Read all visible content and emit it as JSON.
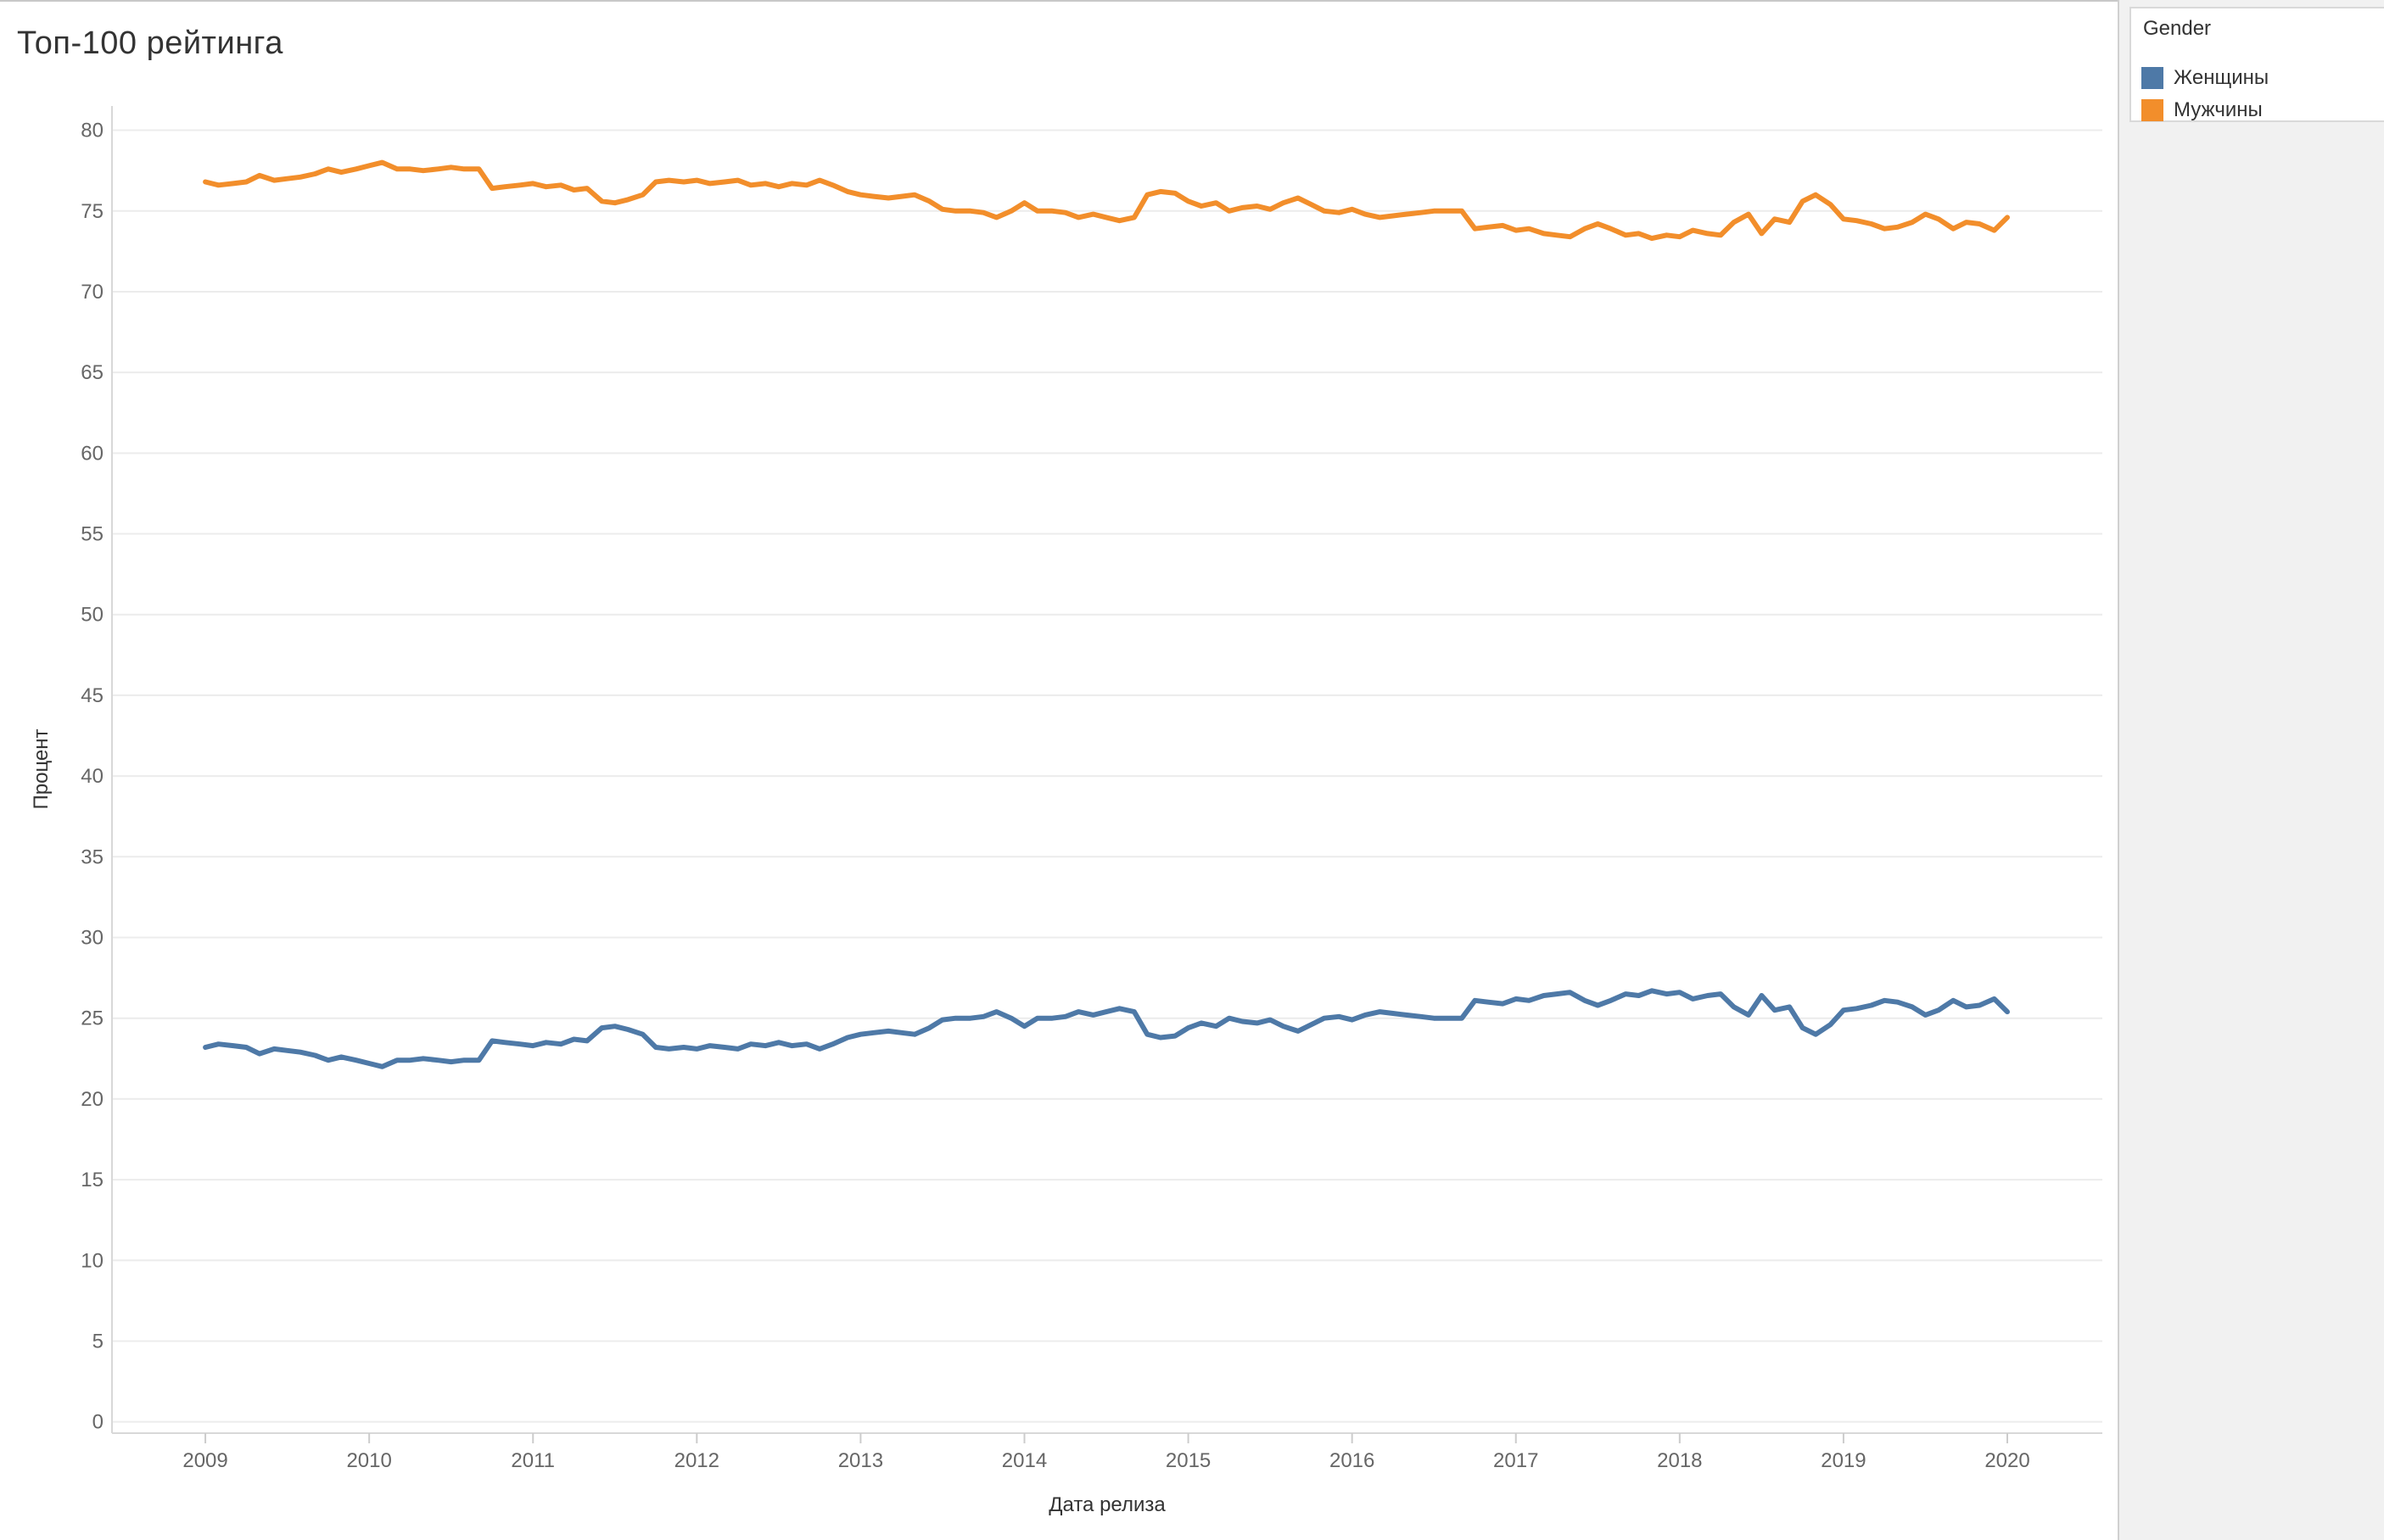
{
  "colors": {
    "women": "#4e79a7",
    "men": "#f28e2b",
    "grid": "#ececec"
  },
  "legend": {
    "title": "Gender",
    "items": [
      {
        "label": "Женщины",
        "color": "#4e79a7"
      },
      {
        "label": "Мужчины",
        "color": "#f28e2b"
      }
    ]
  },
  "chart_data": {
    "type": "line",
    "title": "Топ-100 рейтинга",
    "xlabel": "Дата релиза",
    "ylabel": "Процент",
    "xlim": [
      2008.43,
      2020.58
    ],
    "ylim": [
      -0.7,
      81.5
    ],
    "x_ticks": [
      2009,
      2010,
      2011,
      2012,
      2013,
      2014,
      2015,
      2016,
      2017,
      2018,
      2019,
      2020
    ],
    "y_ticks": [
      0,
      5,
      10,
      15,
      20,
      25,
      30,
      35,
      40,
      45,
      50,
      55,
      60,
      65,
      70,
      75,
      80
    ],
    "grid": true,
    "legend_position": "right",
    "series": [
      {
        "name": "Мужчины",
        "points": [
          [
            2009.0,
            76.8
          ],
          [
            2009.08,
            76.6
          ],
          [
            2009.17,
            76.7
          ],
          [
            2009.25,
            76.8
          ],
          [
            2009.33,
            77.2
          ],
          [
            2009.42,
            76.9
          ],
          [
            2009.5,
            77.0
          ],
          [
            2009.58,
            77.1
          ],
          [
            2009.67,
            77.3
          ],
          [
            2009.75,
            77.6
          ],
          [
            2009.83,
            77.4
          ],
          [
            2009.92,
            77.6
          ],
          [
            2010.0,
            77.8
          ],
          [
            2010.08,
            78.0
          ],
          [
            2010.17,
            77.6
          ],
          [
            2010.25,
            77.6
          ],
          [
            2010.33,
            77.5
          ],
          [
            2010.42,
            77.6
          ],
          [
            2010.5,
            77.7
          ],
          [
            2010.58,
            77.6
          ],
          [
            2010.67,
            77.6
          ],
          [
            2010.75,
            76.4
          ],
          [
            2010.83,
            76.5
          ],
          [
            2010.92,
            76.6
          ],
          [
            2011.0,
            76.7
          ],
          [
            2011.08,
            76.5
          ],
          [
            2011.17,
            76.6
          ],
          [
            2011.25,
            76.3
          ],
          [
            2011.33,
            76.4
          ],
          [
            2011.42,
            75.6
          ],
          [
            2011.5,
            75.5
          ],
          [
            2011.58,
            75.7
          ],
          [
            2011.67,
            76.0
          ],
          [
            2011.75,
            76.8
          ],
          [
            2011.83,
            76.9
          ],
          [
            2011.92,
            76.8
          ],
          [
            2012.0,
            76.9
          ],
          [
            2012.08,
            76.7
          ],
          [
            2012.17,
            76.8
          ],
          [
            2012.25,
            76.9
          ],
          [
            2012.33,
            76.6
          ],
          [
            2012.42,
            76.7
          ],
          [
            2012.5,
            76.5
          ],
          [
            2012.58,
            76.7
          ],
          [
            2012.67,
            76.6
          ],
          [
            2012.75,
            76.9
          ],
          [
            2012.83,
            76.6
          ],
          [
            2012.92,
            76.2
          ],
          [
            2013.0,
            76.0
          ],
          [
            2013.08,
            75.9
          ],
          [
            2013.17,
            75.8
          ],
          [
            2013.25,
            75.9
          ],
          [
            2013.33,
            76.0
          ],
          [
            2013.42,
            75.6
          ],
          [
            2013.5,
            75.1
          ],
          [
            2013.58,
            75.0
          ],
          [
            2013.67,
            75.0
          ],
          [
            2013.75,
            74.9
          ],
          [
            2013.83,
            74.6
          ],
          [
            2013.92,
            75.0
          ],
          [
            2014.0,
            75.5
          ],
          [
            2014.08,
            75.0
          ],
          [
            2014.17,
            75.0
          ],
          [
            2014.25,
            74.9
          ],
          [
            2014.33,
            74.6
          ],
          [
            2014.42,
            74.8
          ],
          [
            2014.5,
            74.6
          ],
          [
            2014.58,
            74.4
          ],
          [
            2014.67,
            74.6
          ],
          [
            2014.75,
            76.0
          ],
          [
            2014.83,
            76.2
          ],
          [
            2014.92,
            76.1
          ],
          [
            2015.0,
            75.6
          ],
          [
            2015.08,
            75.3
          ],
          [
            2015.17,
            75.5
          ],
          [
            2015.25,
            75.0
          ],
          [
            2015.33,
            75.2
          ],
          [
            2015.42,
            75.3
          ],
          [
            2015.5,
            75.1
          ],
          [
            2015.58,
            75.5
          ],
          [
            2015.67,
            75.8
          ],
          [
            2015.75,
            75.4
          ],
          [
            2015.83,
            75.0
          ],
          [
            2015.92,
            74.9
          ],
          [
            2016.0,
            75.1
          ],
          [
            2016.08,
            74.8
          ],
          [
            2016.17,
            74.6
          ],
          [
            2016.25,
            74.7
          ],
          [
            2016.33,
            74.8
          ],
          [
            2016.42,
            74.9
          ],
          [
            2016.5,
            75.0
          ],
          [
            2016.58,
            75.0
          ],
          [
            2016.67,
            75.0
          ],
          [
            2016.75,
            73.9
          ],
          [
            2016.83,
            74.0
          ],
          [
            2016.92,
            74.1
          ],
          [
            2017.0,
            73.8
          ],
          [
            2017.08,
            73.9
          ],
          [
            2017.17,
            73.6
          ],
          [
            2017.25,
            73.5
          ],
          [
            2017.33,
            73.4
          ],
          [
            2017.42,
            73.9
          ],
          [
            2017.5,
            74.2
          ],
          [
            2017.58,
            73.9
          ],
          [
            2017.67,
            73.5
          ],
          [
            2017.75,
            73.6
          ],
          [
            2017.83,
            73.3
          ],
          [
            2017.92,
            73.5
          ],
          [
            2018.0,
            73.4
          ],
          [
            2018.08,
            73.8
          ],
          [
            2018.17,
            73.6
          ],
          [
            2018.25,
            73.5
          ],
          [
            2018.33,
            74.3
          ],
          [
            2018.42,
            74.8
          ],
          [
            2018.5,
            73.6
          ],
          [
            2018.58,
            74.5
          ],
          [
            2018.67,
            74.3
          ],
          [
            2018.75,
            75.6
          ],
          [
            2018.83,
            76.0
          ],
          [
            2018.92,
            75.4
          ],
          [
            2019.0,
            74.5
          ],
          [
            2019.08,
            74.4
          ],
          [
            2019.17,
            74.2
          ],
          [
            2019.25,
            73.9
          ],
          [
            2019.33,
            74.0
          ],
          [
            2019.42,
            74.3
          ],
          [
            2019.5,
            74.8
          ],
          [
            2019.58,
            74.5
          ],
          [
            2019.67,
            73.9
          ],
          [
            2019.75,
            74.3
          ],
          [
            2019.83,
            74.2
          ],
          [
            2019.92,
            73.8
          ],
          [
            2020.0,
            74.6
          ]
        ]
      },
      {
        "name": "Женщины",
        "points": [
          [
            2009.0,
            23.2
          ],
          [
            2009.08,
            23.4
          ],
          [
            2009.17,
            23.3
          ],
          [
            2009.25,
            23.2
          ],
          [
            2009.33,
            22.8
          ],
          [
            2009.42,
            23.1
          ],
          [
            2009.5,
            23.0
          ],
          [
            2009.58,
            22.9
          ],
          [
            2009.67,
            22.7
          ],
          [
            2009.75,
            22.4
          ],
          [
            2009.83,
            22.6
          ],
          [
            2009.92,
            22.4
          ],
          [
            2010.0,
            22.2
          ],
          [
            2010.08,
            22.0
          ],
          [
            2010.17,
            22.4
          ],
          [
            2010.25,
            22.4
          ],
          [
            2010.33,
            22.5
          ],
          [
            2010.42,
            22.4
          ],
          [
            2010.5,
            22.3
          ],
          [
            2010.58,
            22.4
          ],
          [
            2010.67,
            22.4
          ],
          [
            2010.75,
            23.6
          ],
          [
            2010.83,
            23.5
          ],
          [
            2010.92,
            23.4
          ],
          [
            2011.0,
            23.3
          ],
          [
            2011.08,
            23.5
          ],
          [
            2011.17,
            23.4
          ],
          [
            2011.25,
            23.7
          ],
          [
            2011.33,
            23.6
          ],
          [
            2011.42,
            24.4
          ],
          [
            2011.5,
            24.5
          ],
          [
            2011.58,
            24.3
          ],
          [
            2011.67,
            24.0
          ],
          [
            2011.75,
            23.2
          ],
          [
            2011.83,
            23.1
          ],
          [
            2011.92,
            23.2
          ],
          [
            2012.0,
            23.1
          ],
          [
            2012.08,
            23.3
          ],
          [
            2012.17,
            23.2
          ],
          [
            2012.25,
            23.1
          ],
          [
            2012.33,
            23.4
          ],
          [
            2012.42,
            23.3
          ],
          [
            2012.5,
            23.5
          ],
          [
            2012.58,
            23.3
          ],
          [
            2012.67,
            23.4
          ],
          [
            2012.75,
            23.1
          ],
          [
            2012.83,
            23.4
          ],
          [
            2012.92,
            23.8
          ],
          [
            2013.0,
            24.0
          ],
          [
            2013.08,
            24.1
          ],
          [
            2013.17,
            24.2
          ],
          [
            2013.25,
            24.1
          ],
          [
            2013.33,
            24.0
          ],
          [
            2013.42,
            24.4
          ],
          [
            2013.5,
            24.9
          ],
          [
            2013.58,
            25.0
          ],
          [
            2013.67,
            25.0
          ],
          [
            2013.75,
            25.1
          ],
          [
            2013.83,
            25.4
          ],
          [
            2013.92,
            25.0
          ],
          [
            2014.0,
            24.5
          ],
          [
            2014.08,
            25.0
          ],
          [
            2014.17,
            25.0
          ],
          [
            2014.25,
            25.1
          ],
          [
            2014.33,
            25.4
          ],
          [
            2014.42,
            25.2
          ],
          [
            2014.5,
            25.4
          ],
          [
            2014.58,
            25.6
          ],
          [
            2014.67,
            25.4
          ],
          [
            2014.75,
            24.0
          ],
          [
            2014.83,
            23.8
          ],
          [
            2014.92,
            23.9
          ],
          [
            2015.0,
            24.4
          ],
          [
            2015.08,
            24.7
          ],
          [
            2015.17,
            24.5
          ],
          [
            2015.25,
            25.0
          ],
          [
            2015.33,
            24.8
          ],
          [
            2015.42,
            24.7
          ],
          [
            2015.5,
            24.9
          ],
          [
            2015.58,
            24.5
          ],
          [
            2015.67,
            24.2
          ],
          [
            2015.75,
            24.6
          ],
          [
            2015.83,
            25.0
          ],
          [
            2015.92,
            25.1
          ],
          [
            2016.0,
            24.9
          ],
          [
            2016.08,
            25.2
          ],
          [
            2016.17,
            25.4
          ],
          [
            2016.25,
            25.3
          ],
          [
            2016.33,
            25.2
          ],
          [
            2016.42,
            25.1
          ],
          [
            2016.5,
            25.0
          ],
          [
            2016.58,
            25.0
          ],
          [
            2016.67,
            25.0
          ],
          [
            2016.75,
            26.1
          ],
          [
            2016.83,
            26.0
          ],
          [
            2016.92,
            25.9
          ],
          [
            2017.0,
            26.2
          ],
          [
            2017.08,
            26.1
          ],
          [
            2017.17,
            26.4
          ],
          [
            2017.25,
            26.5
          ],
          [
            2017.33,
            26.6
          ],
          [
            2017.42,
            26.1
          ],
          [
            2017.5,
            25.8
          ],
          [
            2017.58,
            26.1
          ],
          [
            2017.67,
            26.5
          ],
          [
            2017.75,
            26.4
          ],
          [
            2017.83,
            26.7
          ],
          [
            2017.92,
            26.5
          ],
          [
            2018.0,
            26.6
          ],
          [
            2018.08,
            26.2
          ],
          [
            2018.17,
            26.4
          ],
          [
            2018.25,
            26.5
          ],
          [
            2018.33,
            25.7
          ],
          [
            2018.42,
            25.2
          ],
          [
            2018.5,
            26.4
          ],
          [
            2018.58,
            25.5
          ],
          [
            2018.67,
            25.7
          ],
          [
            2018.75,
            24.4
          ],
          [
            2018.83,
            24.0
          ],
          [
            2018.92,
            24.6
          ],
          [
            2019.0,
            25.5
          ],
          [
            2019.08,
            25.6
          ],
          [
            2019.17,
            25.8
          ],
          [
            2019.25,
            26.1
          ],
          [
            2019.33,
            26.0
          ],
          [
            2019.42,
            25.7
          ],
          [
            2019.5,
            25.2
          ],
          [
            2019.58,
            25.5
          ],
          [
            2019.67,
            26.1
          ],
          [
            2019.75,
            25.7
          ],
          [
            2019.83,
            25.8
          ],
          [
            2019.92,
            26.2
          ],
          [
            2020.0,
            25.4
          ]
        ]
      }
    ]
  }
}
